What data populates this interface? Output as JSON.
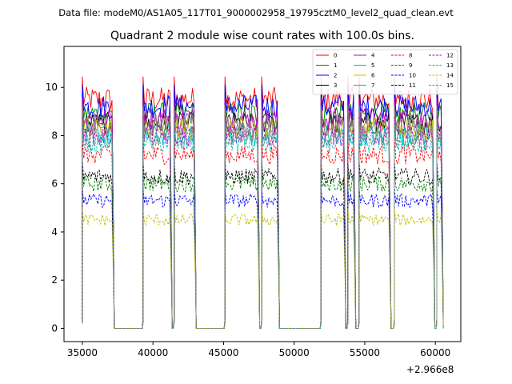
{
  "header_text": "Data file: modeM0/AS1A05_117T01_9000002958_19795cztM0_level2_quad_clean.evt",
  "chart_data": {
    "type": "line",
    "title": "Quadrant 2 module wise count rates with 100.0s bins.",
    "xlabel": "",
    "ylabel": "",
    "x_offset_label": "+2.966e8",
    "xlim": [
      33700,
      61800
    ],
    "ylim": [
      -0.55,
      11.7
    ],
    "x_ticks": [
      35000,
      40000,
      45000,
      50000,
      55000,
      60000
    ],
    "x_tick_labels": [
      "35000",
      "40000",
      "45000",
      "50000",
      "55000",
      "60000"
    ],
    "y_ticks": [
      0,
      2,
      4,
      6,
      8,
      10
    ],
    "y_tick_labels": [
      "0",
      "2",
      "4",
      "6",
      "8",
      "10"
    ],
    "active_intervals": [
      [
        35000,
        37200
      ],
      [
        39300,
        41300
      ],
      [
        41500,
        43000
      ],
      [
        45100,
        47500
      ],
      [
        47700,
        48900
      ],
      [
        51900,
        53600
      ],
      [
        53800,
        54300
      ],
      [
        54600,
        56800
      ],
      [
        57100,
        59900
      ],
      [
        60100,
        60500
      ]
    ],
    "legend_position": "top-right",
    "series": [
      {
        "name": "0",
        "color": "#ff0000",
        "style": "solid",
        "level": 9.5
      },
      {
        "name": "1",
        "color": "#008000",
        "style": "solid",
        "level": 8.9
      },
      {
        "name": "2",
        "color": "#0000ff",
        "style": "solid",
        "level": 9.2
      },
      {
        "name": "3",
        "color": "#000000",
        "style": "solid",
        "level": 8.5
      },
      {
        "name": "4",
        "color": "#bf00bf",
        "style": "solid",
        "level": 8.7
      },
      {
        "name": "5",
        "color": "#00bfbf",
        "style": "solid",
        "level": 8.0
      },
      {
        "name": "6",
        "color": "#bfbf00",
        "style": "solid",
        "level": 8.3
      },
      {
        "name": "7",
        "color": "#808080",
        "style": "solid",
        "level": 8.4
      },
      {
        "name": "8",
        "color": "#ff0000",
        "style": "dashed",
        "level": 7.2
      },
      {
        "name": "9",
        "color": "#008000",
        "style": "dashed",
        "level": 6.0
      },
      {
        "name": "10",
        "color": "#0000ff",
        "style": "dashed",
        "level": 5.3
      },
      {
        "name": "11",
        "color": "#000000",
        "style": "dashed",
        "level": 6.3
      },
      {
        "name": "12",
        "color": "#bf00bf",
        "style": "dashed",
        "level": 8.0
      },
      {
        "name": "13",
        "color": "#00bfbf",
        "style": "dashed",
        "level": 7.7
      },
      {
        "name": "14",
        "color": "#bfbf00",
        "style": "dashed",
        "level": 4.5
      },
      {
        "name": "15",
        "color": "#808080",
        "style": "dashed",
        "level": 7.9
      }
    ]
  }
}
